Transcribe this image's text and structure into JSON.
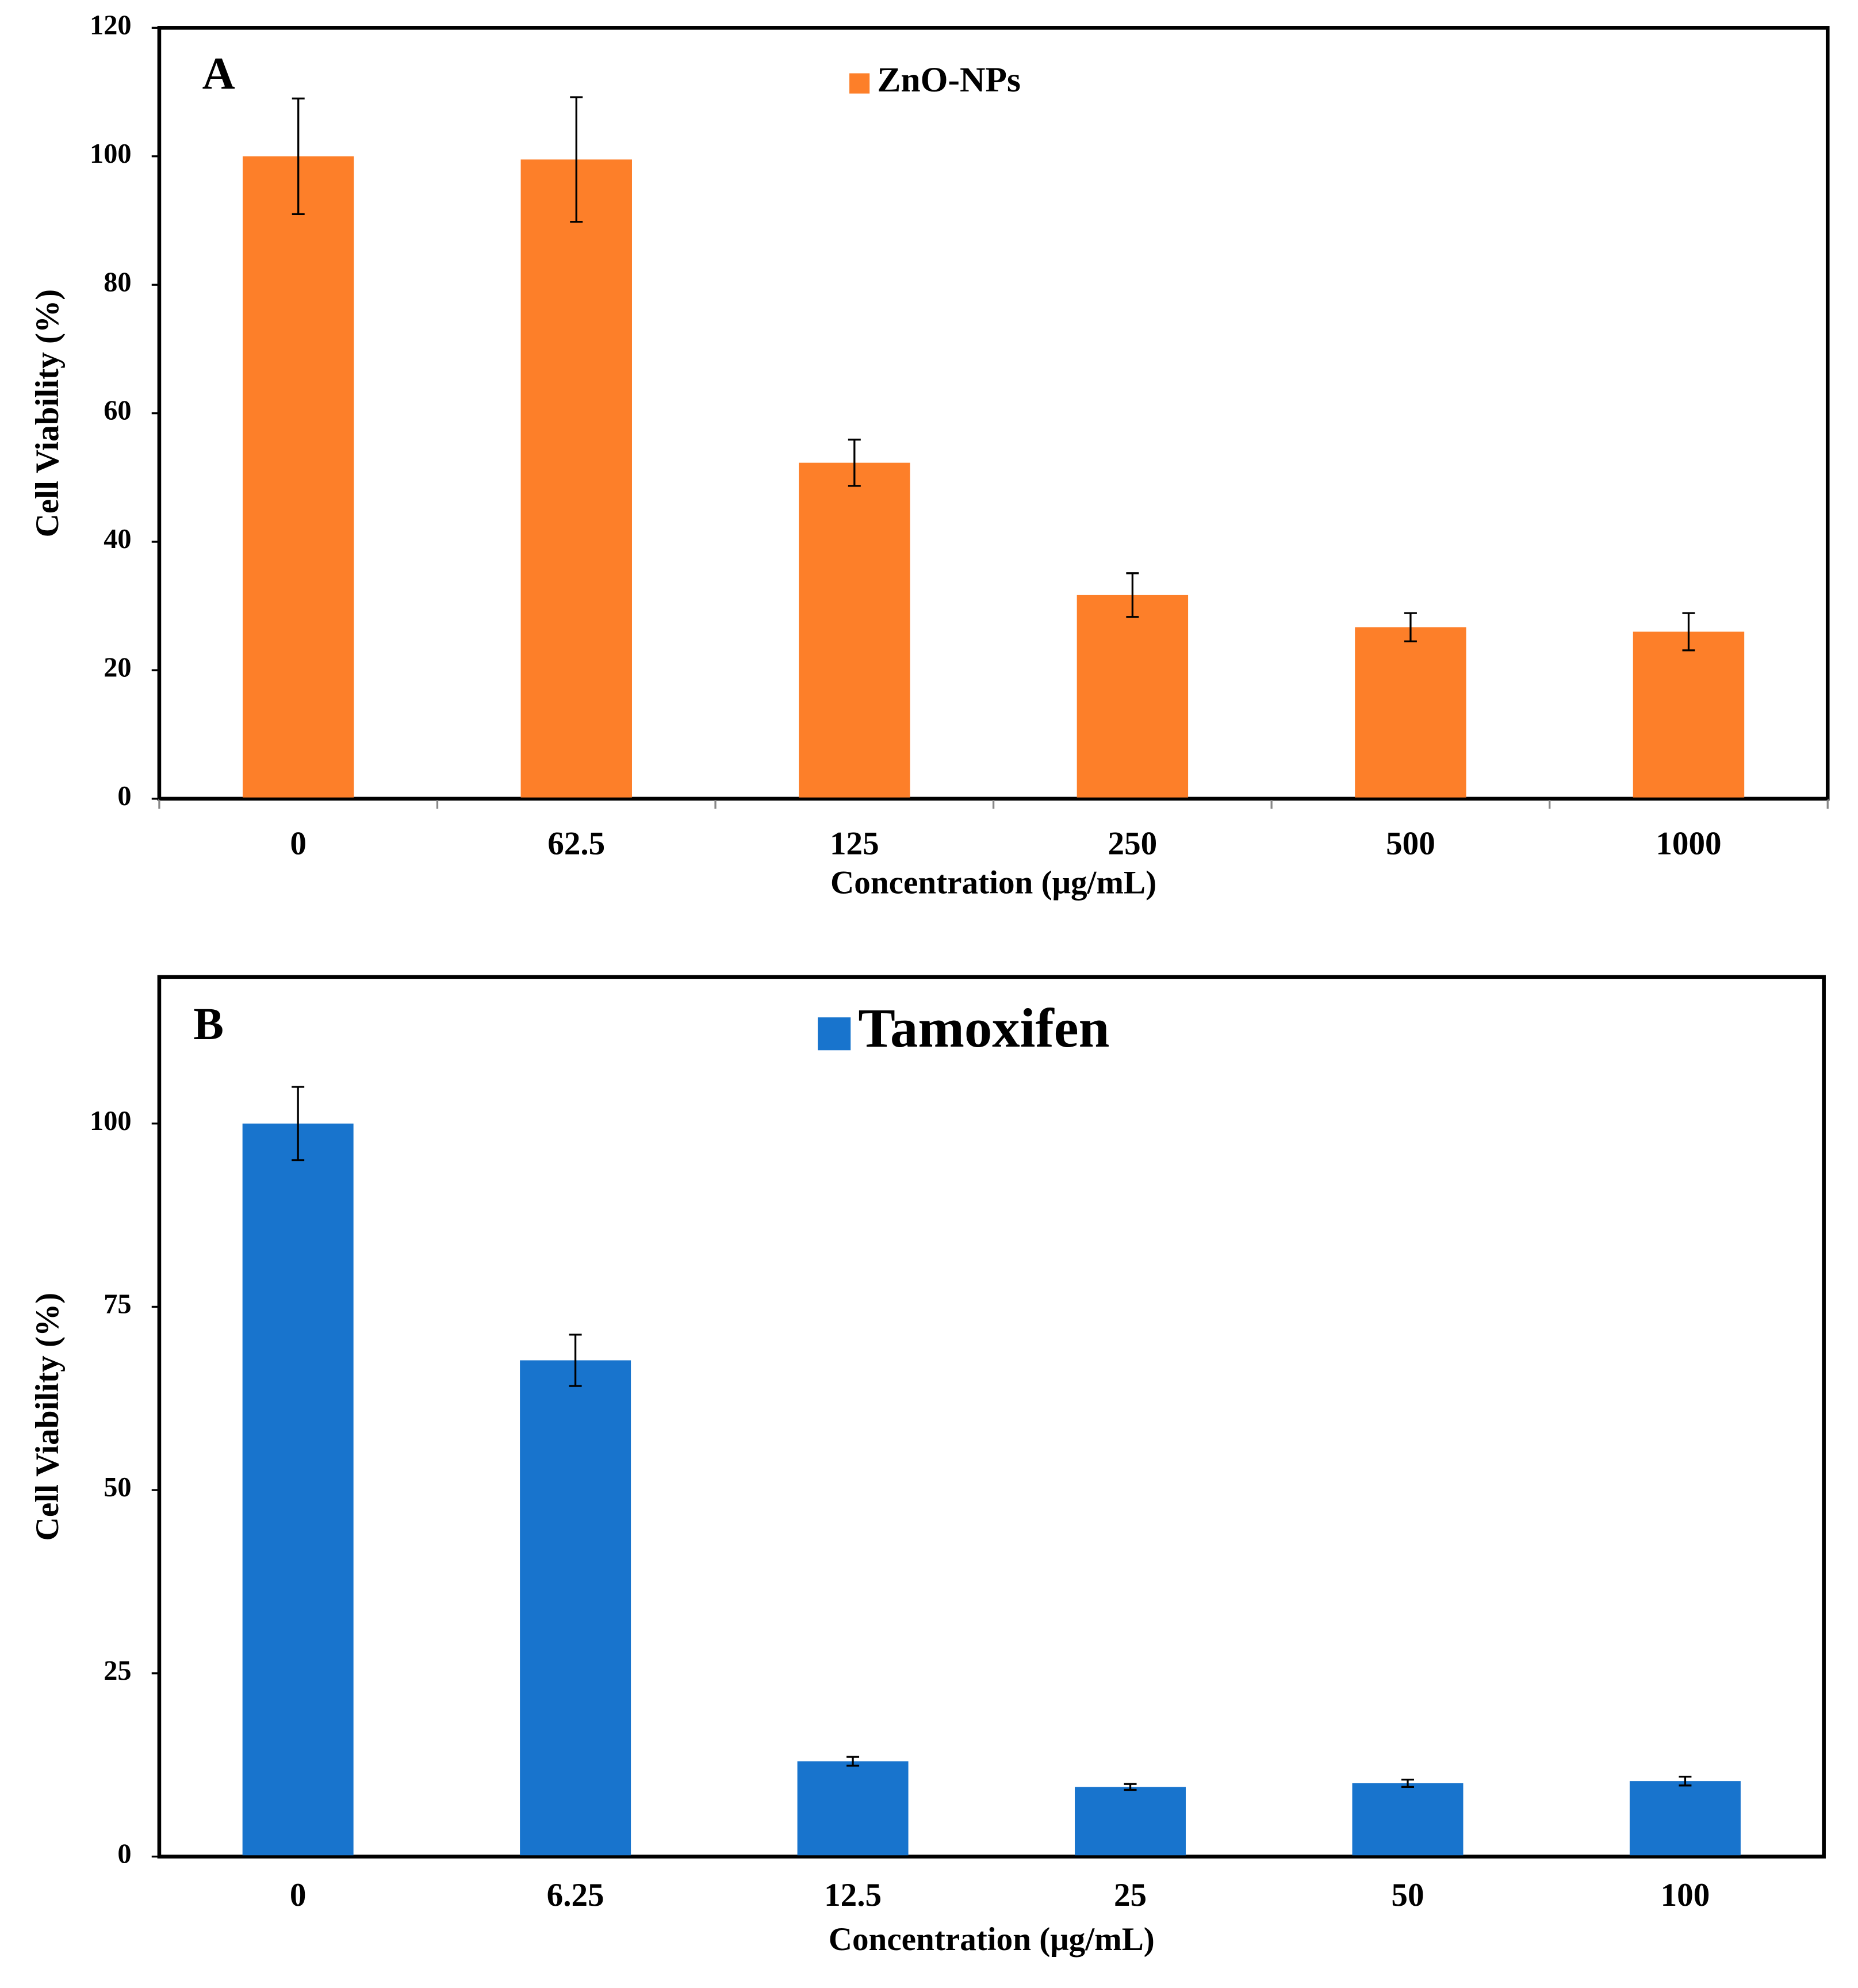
{
  "chart_data": [
    {
      "type": "bar",
      "panel_label": "A",
      "x_label": "Concentration (μg/mL)",
      "y_label": "Cell Viability (%)",
      "categories": [
        "0",
        "62.5",
        "125",
        "250",
        "500",
        "1000"
      ],
      "series": [
        {
          "name": "ZnO-NPs",
          "color": "#fd7f29",
          "values": [
            100,
            99.5,
            52.3,
            31.7,
            26.7,
            26
          ],
          "errors": [
            9,
            9.7,
            3.6,
            3.4,
            2.2,
            2.9
          ]
        }
      ],
      "ylim": [
        0,
        120
      ],
      "yticks": [
        0,
        20,
        40,
        60,
        80,
        100,
        120
      ]
    },
    {
      "type": "bar",
      "panel_label": "B",
      "x_label": "Concentration (μg/mL)",
      "y_label": "Cell Viability (%)",
      "categories": [
        "0",
        "6.25",
        "12.5",
        "25",
        "50",
        "100"
      ],
      "series": [
        {
          "name": "Tamoxifen",
          "color": "#1874cd",
          "values": [
            100,
            67.7,
            13,
            9.5,
            10,
            10.3
          ],
          "errors": [
            5,
            3.5,
            0.6,
            0.4,
            0.5,
            0.6
          ]
        }
      ],
      "ylim": [
        0,
        120
      ],
      "yticks": [
        0,
        25,
        50,
        75,
        100
      ]
    }
  ]
}
